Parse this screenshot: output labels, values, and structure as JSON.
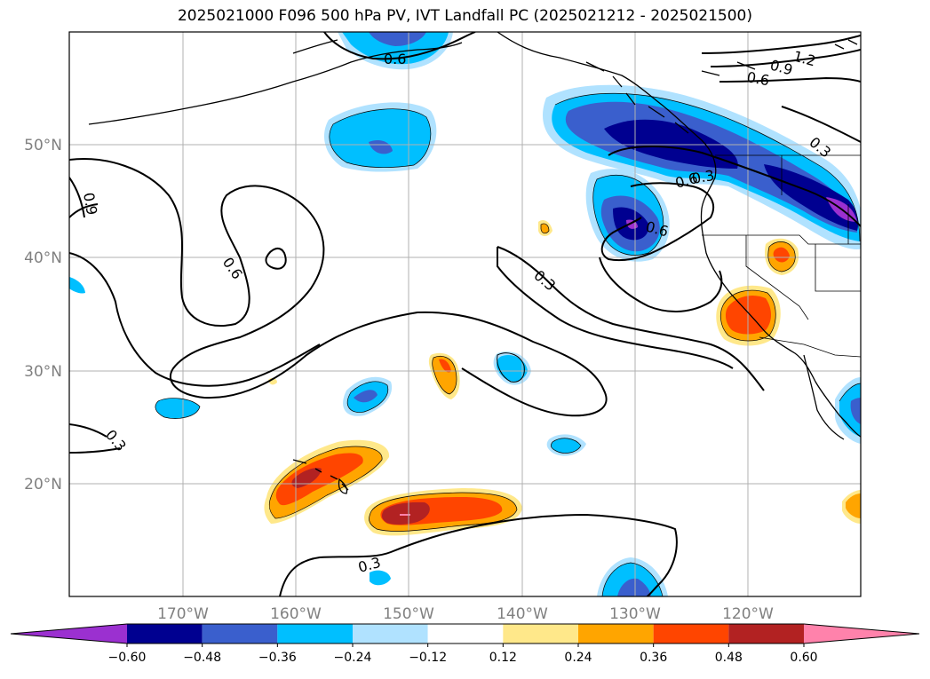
{
  "title": "2025021000 F096 500 hPa PV, IVT Landfall PC (2025021212 - 2025021500)",
  "map": {
    "lat_labels": [
      "50°N",
      "40°N",
      "30°N",
      "20°N"
    ],
    "lon_labels": [
      "170°W",
      "160°W",
      "150°W",
      "140°W",
      "130°W",
      "120°W"
    ],
    "contour_labels": [
      "0.6",
      "1.2",
      "0.9",
      "0.6",
      "0.3",
      "0.9",
      "0.6",
      "0.6",
      "0.3",
      "0.3",
      "0.3",
      "0.6",
      "0.3"
    ]
  },
  "colorbar": {
    "ticks": [
      "−0.60",
      "−0.48",
      "−0.36",
      "−0.24",
      "−0.12",
      "0.12",
      "0.24",
      "0.36",
      "0.48",
      "0.60"
    ],
    "colors": [
      "#9b30d0",
      "#000090",
      "#3a5fcd",
      "#00bfff",
      "#b0e2ff",
      "#ffffff",
      "#ffe88a",
      "#ffa500",
      "#ff4500",
      "#b22222",
      "#ff82ab"
    ]
  }
}
